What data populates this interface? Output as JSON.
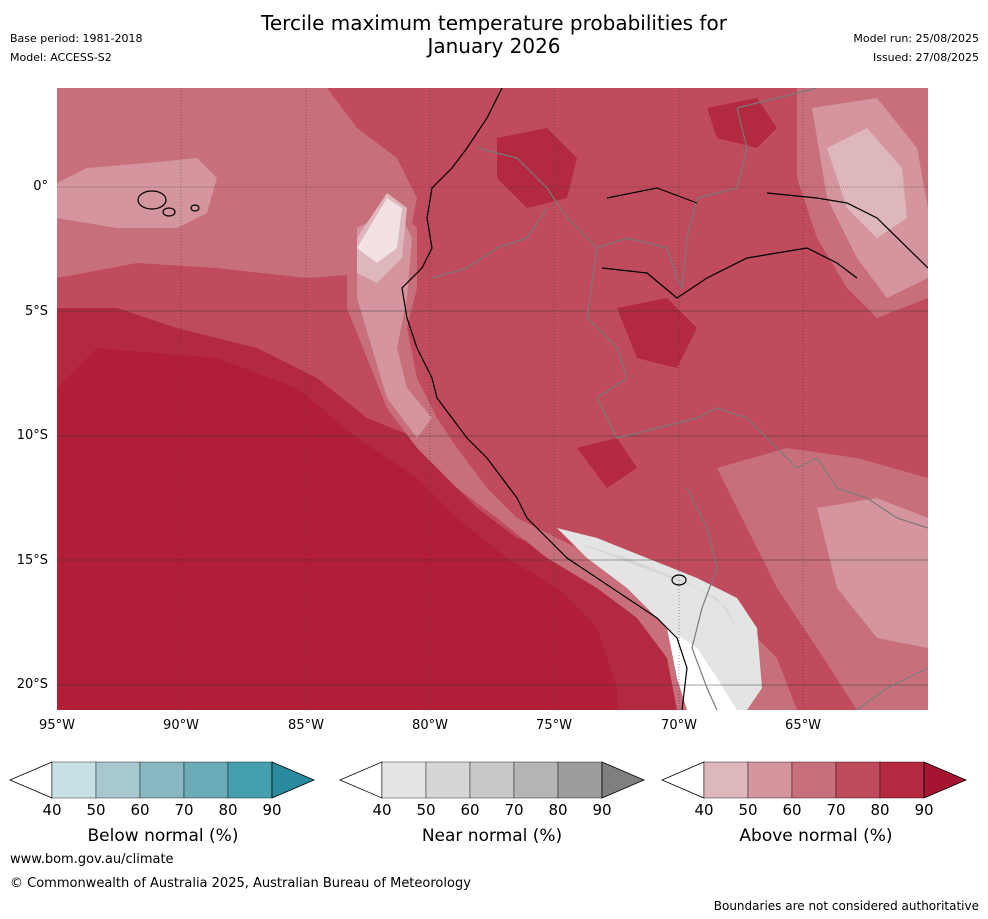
{
  "header": {
    "title_line1": "Tercile maximum temperature probabilities for",
    "title_line2": "January 2026",
    "base_period": "Base period: 1981-2018",
    "model": "Model: ACCESS-S2",
    "model_run": "Model run: 25/08/2025",
    "issued": "Issued: 27/08/2025"
  },
  "map": {
    "lat_labels": [
      "0°",
      "5°S",
      "10°S",
      "15°S",
      "20°S"
    ],
    "lon_labels": [
      "95°W",
      "90°W",
      "85°W",
      "80°W",
      "75°W",
      "70°W",
      "65°W"
    ],
    "colors": {
      "above": [
        "#ffffff",
        "#deb7bc",
        "#d4959e",
        "#c86f7c",
        "#bf4b5c",
        "#b32a40",
        "#a51532"
      ],
      "near": [
        "#ffffff",
        "#e4e4e4",
        "#d6d6d6",
        "#c8c8c8",
        "#b5b5b5",
        "#9c9c9c",
        "#7f7f7f"
      ],
      "below": [
        "#ffffff",
        "#c7e1e6",
        "#a7c8ce",
        "#88b7c2",
        "#6aabb7",
        "#449faf",
        "#2a8a9f"
      ],
      "coastline": "#000000",
      "borders": "#7a7a7a"
    }
  },
  "colorbars": [
    {
      "title": "Below normal (%)",
      "ticks": [
        "40",
        "50",
        "60",
        "70",
        "80",
        "90"
      ],
      "scheme": "below"
    },
    {
      "title": "Near normal (%)",
      "ticks": [
        "40",
        "50",
        "60",
        "70",
        "80",
        "90"
      ],
      "scheme": "near"
    },
    {
      "title": "Above normal (%)",
      "ticks": [
        "40",
        "50",
        "60",
        "70",
        "80",
        "90"
      ],
      "scheme": "above"
    }
  ],
  "footer": {
    "url": "www.bom.gov.au/climate",
    "copyright": "© Commonwealth of Australia 2025, Australian Bureau of Meteorology",
    "disclaimer": "Boundaries are not considered authoritative"
  }
}
